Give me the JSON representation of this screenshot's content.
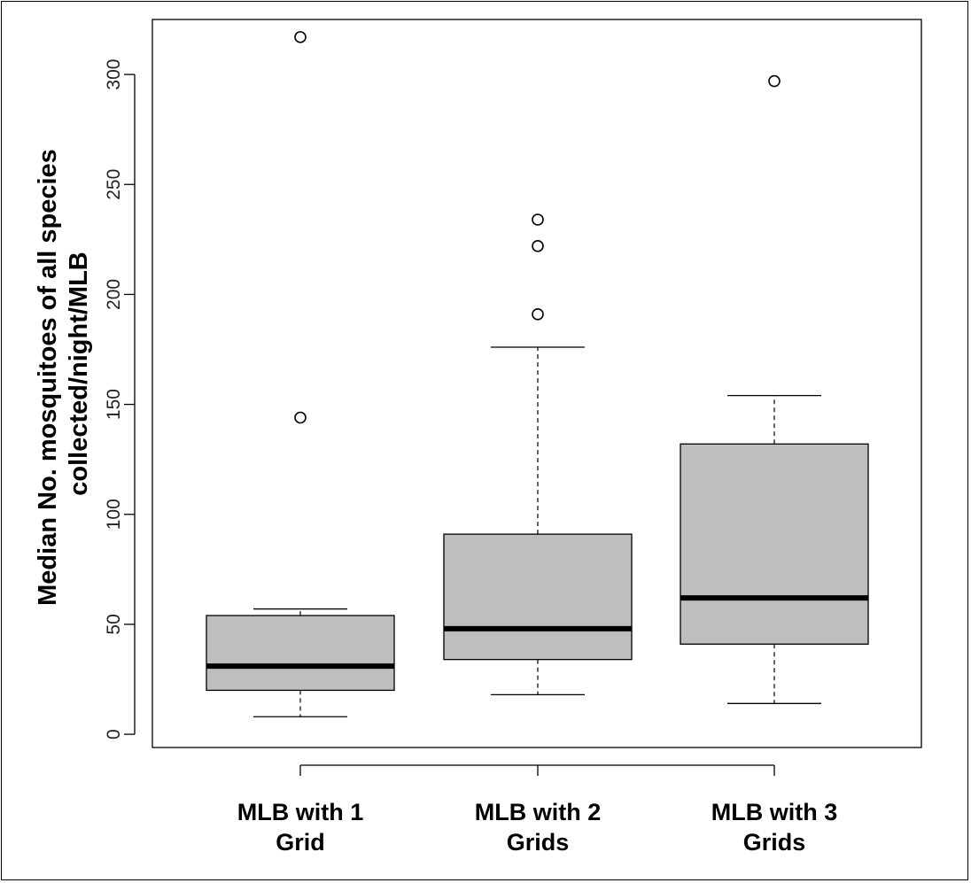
{
  "chart_data": {
    "type": "box",
    "title": "",
    "xlabel": "",
    "ylabel_lines": [
      "Median No. mosquitoes of all species",
      "collected/night/MLB"
    ],
    "ylim": [
      -6,
      325
    ],
    "yticks": [
      0,
      50,
      100,
      150,
      200,
      250,
      300
    ],
    "grid": false,
    "legend": "none",
    "box_fill": "#bebebe",
    "median_color": "#000000",
    "categories": [
      {
        "label_lines": [
          "MLB with 1",
          "Grid"
        ]
      },
      {
        "label_lines": [
          "MLB with 2",
          "Grids"
        ]
      },
      {
        "label_lines": [
          "MLB with 3",
          "Grids"
        ]
      }
    ],
    "boxes": [
      {
        "whisker_low": 8,
        "q1": 20,
        "median": 31,
        "q3": 54,
        "whisker_high": 57,
        "outliers": [
          144,
          317
        ]
      },
      {
        "whisker_low": 18,
        "q1": 34,
        "median": 48,
        "q3": 91,
        "whisker_high": 176,
        "outliers": [
          191,
          222,
          234
        ]
      },
      {
        "whisker_low": 14,
        "q1": 41,
        "median": 62,
        "q3": 132,
        "whisker_high": 154,
        "outliers": [
          297
        ]
      }
    ]
  }
}
